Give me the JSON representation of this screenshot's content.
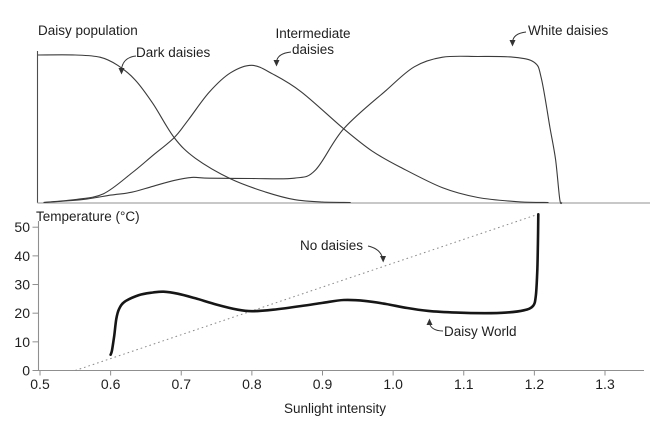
{
  "page": {
    "background": "#ffffff"
  },
  "colors": {
    "curve": "#3a3a3a",
    "thick_curve": "#161616",
    "dotted_curve": "#8a8a8a",
    "top_axis": "#4d4d4d",
    "top_baseline": "#b5b5b5",
    "bottom_axis": "#8f8f8f",
    "text": "#1f1f1f"
  },
  "annotations": {
    "intermediate_display": "Intermediate\ndaisies"
  },
  "chart_data": [
    {
      "type": "line",
      "title": "Daisy population",
      "xlabel": "",
      "ylabel": "Daisy population",
      "x_range": [
        0.5,
        1.3
      ],
      "y_range": [
        0,
        1
      ],
      "grid": false,
      "legend_position": "inline-annotations",
      "series": [
        {
          "name": "Dark daisies",
          "style": "thin",
          "points": [
            [
              0.497,
              1.0
            ],
            [
              0.55,
              1.0
            ],
            [
              0.585,
              0.985
            ],
            [
              0.61,
              0.93
            ],
            [
              0.635,
              0.83
            ],
            [
              0.66,
              0.67
            ],
            [
              0.69,
              0.44
            ],
            [
              0.72,
              0.3
            ],
            [
              0.77,
              0.16
            ],
            [
              0.82,
              0.07
            ],
            [
              0.86,
              0.02
            ],
            [
              0.9,
              0.003
            ],
            [
              0.94,
              0.0
            ]
          ]
        },
        {
          "name": "Intermediate daisies",
          "style": "thin",
          "points": [
            [
              0.505,
              0.0
            ],
            [
              0.55,
              0.02
            ],
            [
              0.59,
              0.06
            ],
            [
              0.63,
              0.2
            ],
            [
              0.66,
              0.32
            ],
            [
              0.69,
              0.44
            ],
            [
              0.71,
              0.56
            ],
            [
              0.74,
              0.75
            ],
            [
              0.77,
              0.88
            ],
            [
              0.8,
              0.93
            ],
            [
              0.83,
              0.87
            ],
            [
              0.87,
              0.75
            ],
            [
              0.93,
              0.5
            ],
            [
              0.97,
              0.35
            ],
            [
              1.01,
              0.24
            ],
            [
              1.07,
              0.1
            ],
            [
              1.12,
              0.034
            ],
            [
              1.18,
              0.004
            ],
            [
              1.22,
              0.0
            ]
          ]
        },
        {
          "name": "White daisies",
          "style": "thin",
          "points": [
            [
              0.505,
              0.0
            ],
            [
              0.56,
              0.02
            ],
            [
              0.6,
              0.05
            ],
            [
              0.63,
              0.07
            ],
            [
              0.66,
              0.11
            ],
            [
              0.69,
              0.15
            ],
            [
              0.715,
              0.17
            ],
            [
              0.74,
              0.165
            ],
            [
              0.8,
              0.163
            ],
            [
              0.86,
              0.165
            ],
            [
              0.89,
              0.22
            ],
            [
              0.93,
              0.5
            ],
            [
              0.99,
              0.76
            ],
            [
              1.03,
              0.92
            ],
            [
              1.07,
              0.985
            ],
            [
              1.12,
              0.99
            ],
            [
              1.17,
              0.985
            ],
            [
              1.2,
              0.95
            ],
            [
              1.21,
              0.84
            ],
            [
              1.222,
              0.51
            ],
            [
              1.23,
              0.29
            ],
            [
              1.236,
              0.02
            ],
            [
              1.239,
              0.0
            ]
          ]
        }
      ]
    },
    {
      "type": "line",
      "title": "Temperature (°C)",
      "xlabel": "Sunlight intensity",
      "ylabel": "Temperature (°C)",
      "x_range": [
        0.5,
        1.3
      ],
      "y_range": [
        0,
        50
      ],
      "x_ticks": [
        "0.5",
        "0.6",
        "0.7",
        "0.8",
        "0.9",
        "1.0",
        "1.1",
        "1.2",
        "1.3"
      ],
      "y_ticks": [
        "0",
        "10",
        "20",
        "30",
        "40",
        "50"
      ],
      "grid": false,
      "legend_position": "inline-annotations",
      "series": [
        {
          "name": "No daisies",
          "style": "dotted",
          "points": [
            [
              0.55,
              0
            ],
            [
              1.205,
              54.5
            ]
          ]
        },
        {
          "name": "Daisy World",
          "style": "thick",
          "points": [
            [
              0.6,
              5.5
            ],
            [
              0.602,
              7
            ],
            [
              0.605,
              12
            ],
            [
              0.608,
              18
            ],
            [
              0.612,
              21.5
            ],
            [
              0.62,
              24
            ],
            [
              0.64,
              26.3
            ],
            [
              0.66,
              27.2
            ],
            [
              0.675,
              27.5
            ],
            [
              0.695,
              26.8
            ],
            [
              0.72,
              25.2
            ],
            [
              0.75,
              23.0
            ],
            [
              0.78,
              21.2
            ],
            [
              0.8,
              20.7
            ],
            [
              0.83,
              21.2
            ],
            [
              0.87,
              22.5
            ],
            [
              0.9,
              23.6
            ],
            [
              0.93,
              24.6
            ],
            [
              0.96,
              24.3
            ],
            [
              0.99,
              23.2
            ],
            [
              1.02,
              21.8
            ],
            [
              1.05,
              20.8
            ],
            [
              1.09,
              20.2
            ],
            [
              1.13,
              20.0
            ],
            [
              1.16,
              20.2
            ],
            [
              1.185,
              21.0
            ],
            [
              1.198,
              22.5
            ],
            [
              1.202,
              26
            ],
            [
              1.204,
              34
            ],
            [
              1.205,
              44
            ],
            [
              1.2055,
              54.5
            ]
          ]
        }
      ]
    }
  ]
}
